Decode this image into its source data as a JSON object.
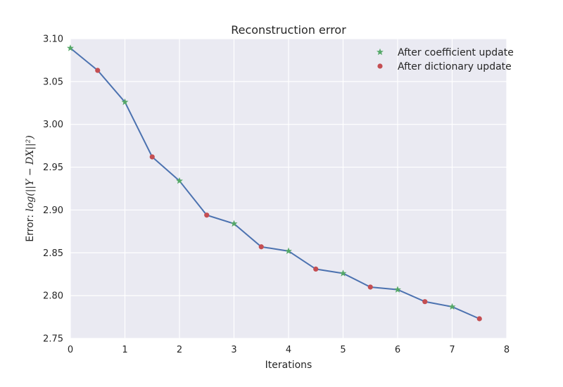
{
  "chart_data": {
    "type": "line",
    "title": "Reconstruction error",
    "xlabel": "Iterations",
    "ylabel_prefix": "Error: ",
    "ylabel_math": "log(||Y − DX||²)",
    "xlim": [
      0,
      8
    ],
    "ylim": [
      2.75,
      3.1
    ],
    "xticks": [
      0,
      1,
      2,
      3,
      4,
      5,
      6,
      7,
      8
    ],
    "yticks": [
      "2.75",
      "2.80",
      "2.85",
      "2.90",
      "2.95",
      "3.00",
      "3.05",
      "3.10"
    ],
    "grid": true,
    "legend_position": "top-right",
    "line": {
      "color": "#4c72b0",
      "x": [
        0,
        0.5,
        1,
        1.5,
        2,
        2.5,
        3,
        3.5,
        4,
        4.5,
        5,
        5.5,
        6,
        6.5,
        7,
        7.5
      ],
      "y": [
        3.089,
        3.063,
        3.026,
        2.962,
        2.934,
        2.894,
        2.884,
        2.857,
        2.852,
        2.831,
        2.826,
        2.81,
        2.807,
        2.793,
        2.787,
        2.773
      ]
    },
    "series": [
      {
        "name": "After coefficient update",
        "marker": "star",
        "color": "#55a868",
        "x": [
          0,
          1,
          2,
          3,
          4,
          5,
          6,
          7
        ],
        "y": [
          3.089,
          3.026,
          2.934,
          2.884,
          2.852,
          2.826,
          2.807,
          2.787
        ]
      },
      {
        "name": "After dictionary update",
        "marker": "circle",
        "color": "#c44e52",
        "x": [
          0.5,
          1.5,
          2.5,
          3.5,
          4.5,
          5.5,
          6.5,
          7.5
        ],
        "y": [
          3.063,
          2.962,
          2.894,
          2.857,
          2.831,
          2.81,
          2.793,
          2.773
        ]
      }
    ]
  }
}
